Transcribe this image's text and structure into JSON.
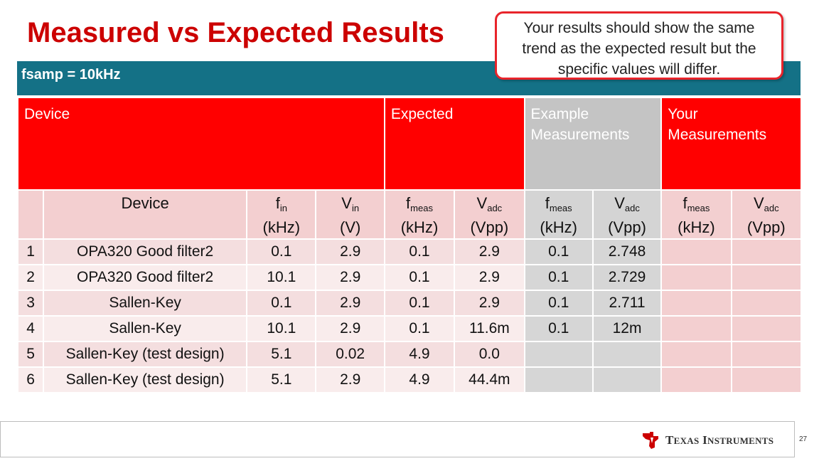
{
  "slide": {
    "title": "Measured vs Expected Results",
    "subtitle_bar": "fsamp = 10kHz",
    "callout": {
      "lines": [
        "Your results should show the same",
        "trend as the expected result but the",
        "specific values will differ."
      ],
      "border_color": "#e8242b"
    },
    "page_number": "27",
    "footer_logo_text": "Texas Instruments",
    "colors": {
      "title": "#cc0000",
      "bar": "#147186",
      "header_red": "#ff0000",
      "header_gray": "#c4c4c4"
    }
  },
  "table": {
    "group_headers": {
      "device": "Device",
      "expected": "Expected",
      "example": [
        "Example",
        "Measurements"
      ],
      "yours": [
        "Your",
        "Measurements"
      ]
    },
    "sub_headers": {
      "device": "Device",
      "fin": {
        "main": "f",
        "sub": "in",
        "unit": "(kHz)"
      },
      "vin": {
        "main": "V",
        "sub": "in",
        "unit": "(V)"
      },
      "fmeas": {
        "main": "f",
        "sub": "meas",
        "unit": "(kHz)"
      },
      "vadc": {
        "main": "V",
        "sub": "adc",
        "unit": "(Vpp)"
      }
    },
    "rows": [
      {
        "n": "1",
        "device": "OPA320 Good filter2",
        "fin": "0.1",
        "vin": "2.9",
        "fmeas": "0.1",
        "vadc": "2.9",
        "ex_f": "0.1",
        "ex_v": "2.748"
      },
      {
        "n": "2",
        "device": "OPA320 Good filter2",
        "fin": "10.1",
        "vin": "2.9",
        "fmeas": "0.1",
        "vadc": "2.9",
        "ex_f": "0.1",
        "ex_v": "2.729"
      },
      {
        "n": "3",
        "device": "Sallen-Key",
        "fin": "0.1",
        "vin": "2.9",
        "fmeas": "0.1",
        "vadc": "2.9",
        "ex_f": "0.1",
        "ex_v": "2.711"
      },
      {
        "n": "4",
        "device": "Sallen-Key",
        "fin": "10.1",
        "vin": "2.9",
        "fmeas": "0.1",
        "vadc": "11.6m",
        "ex_f": "0.1",
        "ex_v": "12m"
      },
      {
        "n": "5",
        "device": "Sallen-Key (test design)",
        "fin": "5.1",
        "vin": "0.02",
        "fmeas": "4.9",
        "vadc": "0.0",
        "ex_f": "",
        "ex_v": ""
      },
      {
        "n": "6",
        "device": "Sallen-Key (test design)",
        "fin": "5.1",
        "vin": "2.9",
        "fmeas": "4.9",
        "vadc": "44.4m",
        "ex_f": "",
        "ex_v": ""
      }
    ]
  }
}
